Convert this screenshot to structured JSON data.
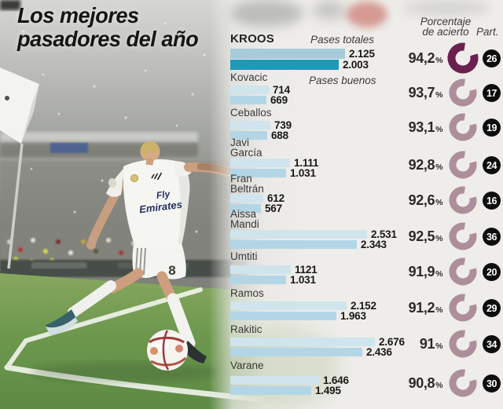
{
  "title": {
    "line1": "Los mejores",
    "line2": "pasadores del año"
  },
  "headers": {
    "total_label": "Pases totales",
    "good_label": "Pases buenos",
    "accuracy_line1": "Porcentaje",
    "accuracy_line2": "de acierto",
    "participation_label": "Part."
  },
  "ui": {
    "percent_symbol": "%"
  },
  "photo": {
    "jersey_sponsor_line1": "Fly",
    "jersey_sponsor_line2": "Emirates",
    "shorts_number": "8"
  },
  "chart_data": {
    "type": "bar",
    "orientation": "horizontal",
    "title": "Los mejores pasadores del año",
    "series_labels": [
      "Pases totales",
      "Pases buenos"
    ],
    "xlim": [
      0,
      2800
    ],
    "legend_position": "inline-first-row",
    "grid": false,
    "colors": {
      "bar_total_highlight": "#a6cbd9",
      "bar_good_highlight": "#1e9ab6",
      "bar_total": "#cfe4ed",
      "bar_good": "#b2d6e6",
      "ring_highlight": "#6b2150",
      "ring": "#ae8e9b",
      "badge_bg": "#0e0e0e",
      "badge_text": "#ffffff"
    },
    "players": [
      {
        "name": "KROOS",
        "name_lines": [
          "KROOS"
        ],
        "total": 2125,
        "total_display": "2.125",
        "good": 2003,
        "good_display": "2.003",
        "accuracy_pct": 94.2,
        "accuracy_display": "94,2",
        "participations": 26,
        "participations_display": "26"
      },
      {
        "name": "Kovacic",
        "name_lines": [
          "Kovacic"
        ],
        "total": 714,
        "total_display": "714",
        "good": 669,
        "good_display": "669",
        "accuracy_pct": 93.7,
        "accuracy_display": "93,7",
        "participations": 17,
        "participations_display": "17"
      },
      {
        "name": "Ceballos",
        "name_lines": [
          "Ceballos"
        ],
        "total": 739,
        "total_display": "739",
        "good": 688,
        "good_display": "688",
        "accuracy_pct": 93.1,
        "accuracy_display": "93,1",
        "participations": 19,
        "participations_display": "19"
      },
      {
        "name": "Javi García",
        "name_lines": [
          "Javi",
          "García"
        ],
        "total": 1111,
        "total_display": "1.111",
        "good": 1031,
        "good_display": "1.031",
        "accuracy_pct": 92.8,
        "accuracy_display": "92,8",
        "participations": 24,
        "participations_display": "24"
      },
      {
        "name": "Fran Beltrán",
        "name_lines": [
          "Fran",
          "Beltrán"
        ],
        "total": 612,
        "total_display": "612",
        "good": 567,
        "good_display": "567",
        "accuracy_pct": 92.6,
        "accuracy_display": "92,6",
        "participations": 16,
        "participations_display": "16"
      },
      {
        "name": "Aissa Mandi",
        "name_lines": [
          "Aissa",
          "Mandi"
        ],
        "total": 2531,
        "total_display": "2.531",
        "good": 2343,
        "good_display": "2.343",
        "accuracy_pct": 92.5,
        "accuracy_display": "92,5",
        "participations": 36,
        "participations_display": "36"
      },
      {
        "name": "Umtiti",
        "name_lines": [
          "Umtiti"
        ],
        "total": 1121,
        "total_display": "1121",
        "good": 1031,
        "good_display": "1.031",
        "accuracy_pct": 91.9,
        "accuracy_display": "91,9",
        "participations": 20,
        "participations_display": "20"
      },
      {
        "name": "Ramos",
        "name_lines": [
          "Ramos"
        ],
        "total": 2152,
        "total_display": "2.152",
        "good": 1963,
        "good_display": "1.963",
        "accuracy_pct": 91.2,
        "accuracy_display": "91,2",
        "participations": 29,
        "participations_display": "29"
      },
      {
        "name": "Rakitic",
        "name_lines": [
          "Rakitic"
        ],
        "total": 2676,
        "total_display": "2.676",
        "good": 2436,
        "good_display": "2.436",
        "accuracy_pct": 91.0,
        "accuracy_display": "91",
        "participations": 34,
        "participations_display": "34"
      },
      {
        "name": "Varane",
        "name_lines": [
          "Varane"
        ],
        "total": 1646,
        "total_display": "1.646",
        "good": 1495,
        "good_display": "1.495",
        "accuracy_pct": 90.8,
        "accuracy_display": "90,8",
        "participations": 30,
        "participations_display": "30"
      }
    ]
  }
}
